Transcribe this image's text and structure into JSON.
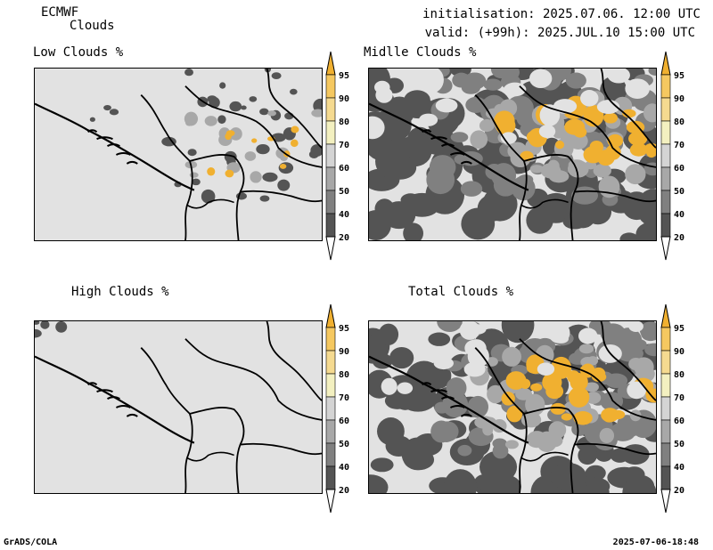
{
  "header": {
    "model": "ECMWF",
    "product": "Clouds",
    "init_line": "initialisation: 2025.07.06. 12:00 UTC",
    "valid_line": "valid: (+99h): 2025.JUL.10 15:00 UTC"
  },
  "panels": [
    {
      "title": "Low Clouds %",
      "coverage": "low"
    },
    {
      "title": "Midlle Clouds %",
      "coverage": "high"
    },
    {
      "title": "High Clouds %",
      "coverage": "minimal"
    },
    {
      "title": "Total Clouds %",
      "coverage": "high"
    }
  ],
  "colorbar": {
    "ticks": [
      "95",
      "90",
      "80",
      "70",
      "60",
      "50",
      "40",
      "20"
    ],
    "colors": [
      "#f0b030",
      "#f5c860",
      "#f5da90",
      "#f3f0c0",
      "#d4d4d4",
      "#a8a8a8",
      "#808080",
      "#545454",
      "#ffffff"
    ]
  },
  "footer": {
    "left": "GrADS/COLA",
    "right": "2025-07-06-18:48"
  },
  "colors": {
    "background_map": "#e2e2e2",
    "cloud_dark": "#545454",
    "cloud_mid": "#808080",
    "cloud_light": "#a8a8a8",
    "cloud_yellow": "#f0b030"
  }
}
